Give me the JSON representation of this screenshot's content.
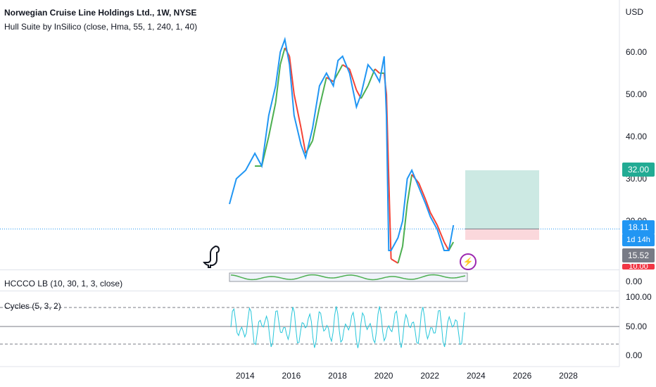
{
  "header": {
    "symbol_title": "Norwegian Cruise Line Holdings Ltd., 1W, NYSE",
    "indicator_title": "Hull Suite by InSilico (close, Hma, 55, 1, 240, 1, 40)",
    "currency": "USD"
  },
  "subpanes": {
    "hccco_title": "HCCCO  LB (10, 30, 1, 3, close)",
    "cycles_title": "Cycles (5, 3, 2)"
  },
  "price_axis": {
    "ticks": [
      "60.00",
      "50.00",
      "40.00",
      "30.00",
      "20.00"
    ],
    "hccco_ticks": [
      "0.00"
    ],
    "cycles_ticks": [
      "100.00",
      "50.00",
      "0.00"
    ]
  },
  "price_tags": {
    "target": "32.00",
    "last": "18.11",
    "countdown": "1d 14h",
    "stop": "15.52",
    "partial": "10.00"
  },
  "time_axis": {
    "ticks": [
      "2014",
      "2016",
      "2018",
      "2020",
      "2022",
      "2024",
      "2026",
      "2028"
    ]
  },
  "colors": {
    "price_line": "#2196f3",
    "hull_up": "#4caf50",
    "hull_down": "#f44336",
    "target_zone": "#cce9e3",
    "stop_zone": "#fbd8dc",
    "target_tag": "#22ab94",
    "last_tag": "#2196f3",
    "stop_tag": "#787b86",
    "cycles_line": "#26c6da"
  },
  "chart_data": {
    "type": "line",
    "ylabel": "USD",
    "ylim": [
      10,
      68
    ],
    "x": [
      2013.3,
      2013.6,
      2014.0,
      2014.4,
      2014.7,
      2015.0,
      2015.3,
      2015.5,
      2015.7,
      2015.9,
      2016.1,
      2016.4,
      2016.6,
      2016.9,
      2017.2,
      2017.5,
      2017.8,
      2018.0,
      2018.2,
      2018.5,
      2018.8,
      2019.0,
      2019.3,
      2019.6,
      2019.8,
      2020.0,
      2020.1,
      2020.2,
      2020.3,
      2020.6,
      2020.8,
      2021.0,
      2021.2,
      2021.5,
      2021.8,
      2022.0,
      2022.3,
      2022.6,
      2022.8,
      2023.0
    ],
    "series": [
      {
        "values": [
          24,
          30,
          32,
          36,
          33,
          45,
          52,
          60,
          63,
          57,
          45,
          38,
          35,
          42,
          52,
          55,
          52,
          58,
          59,
          55,
          47,
          50,
          57,
          55,
          53,
          59,
          45,
          13,
          13,
          16,
          20,
          30,
          32,
          28,
          24,
          21,
          18,
          13,
          13,
          19
        ]
      },
      {
        "values": [
          null,
          null,
          null,
          33,
          33,
          40,
          48,
          57,
          61,
          59,
          50,
          42,
          36,
          39,
          47,
          54,
          53,
          55,
          57,
          56,
          51,
          49,
          52,
          56,
          55,
          55,
          50,
          30,
          11,
          10,
          14,
          24,
          31,
          29,
          25,
          22,
          19,
          15,
          13,
          15
        ]
      }
    ],
    "trade_zone": {
      "entry": 18.11,
      "target": 32.0,
      "stop": 15.52
    }
  }
}
